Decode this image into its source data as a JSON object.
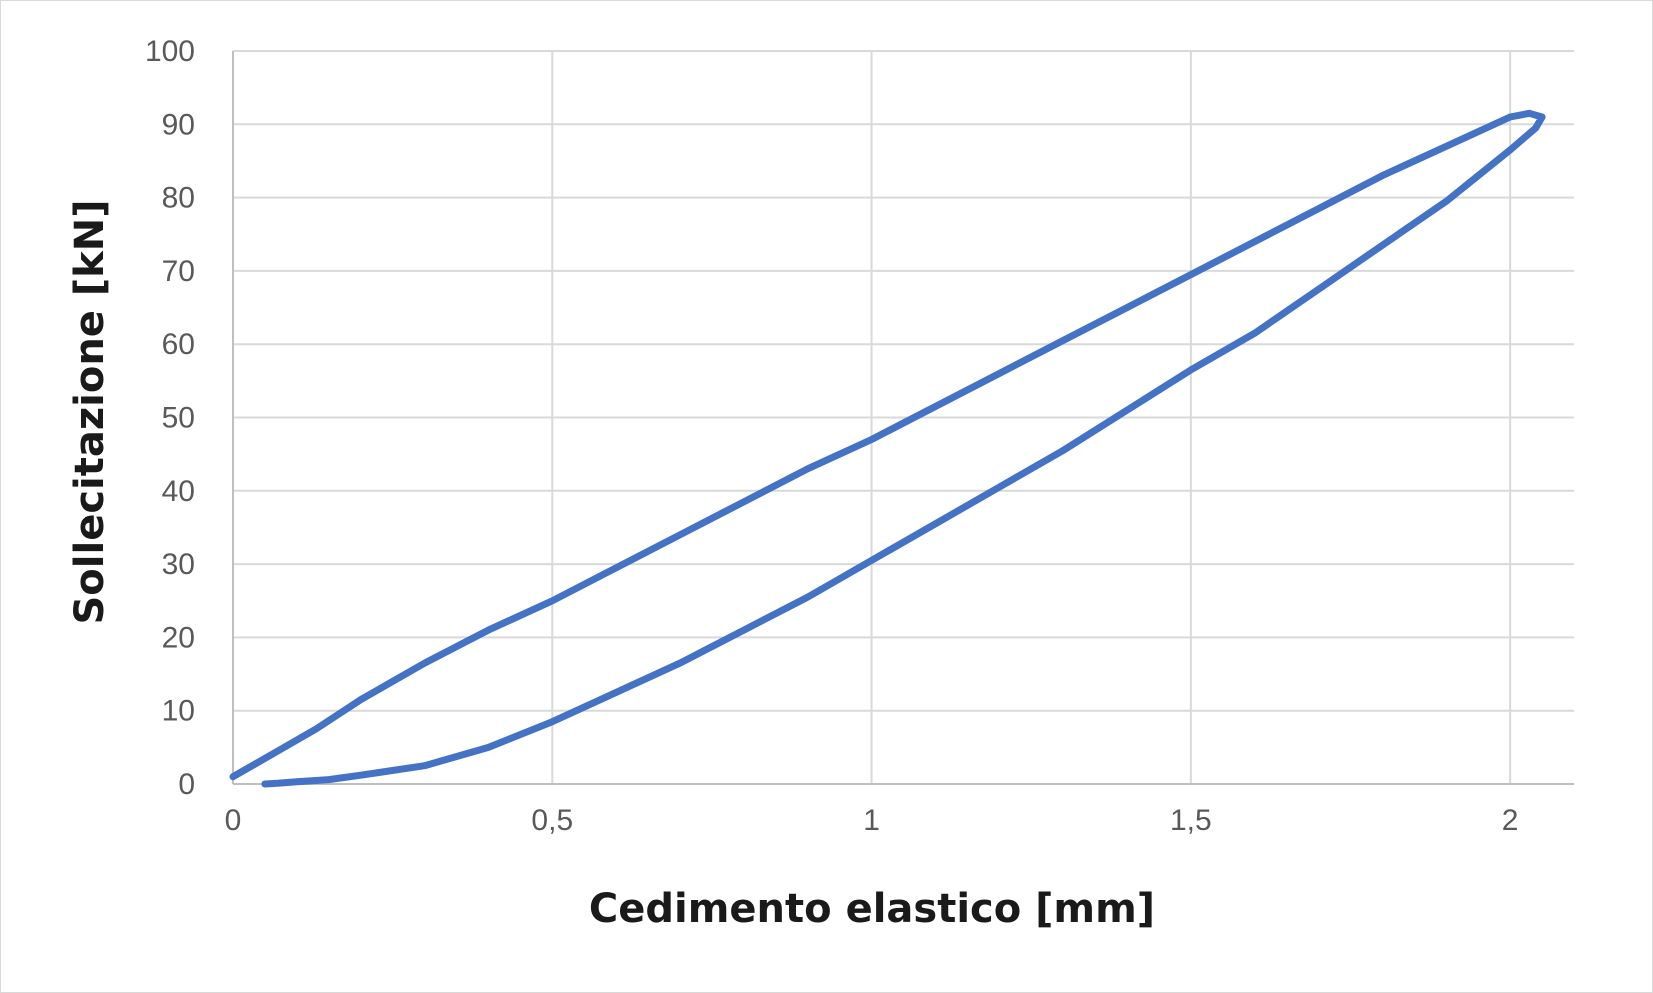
{
  "chart_data": {
    "type": "line",
    "title": "",
    "xlabel": "Cedimento elastico [mm]",
    "ylabel": "Sollecitazione [kN]",
    "xlim": [
      0,
      2.1
    ],
    "ylim": [
      0,
      100
    ],
    "x_ticks": [
      0,
      0.5,
      1,
      1.5,
      2
    ],
    "x_tick_labels": [
      "0",
      "0,5",
      "1",
      "1,5",
      "2"
    ],
    "y_ticks": [
      0,
      10,
      20,
      30,
      40,
      50,
      60,
      70,
      80,
      90,
      100
    ],
    "y_tick_labels": [
      "0",
      "10",
      "20",
      "30",
      "40",
      "50",
      "60",
      "70",
      "80",
      "90",
      "100"
    ],
    "grid": true,
    "legend": "none",
    "line_color": "#4472c4",
    "series": [
      {
        "x": [
          0.0,
          0.03,
          0.08,
          0.13,
          0.2,
          0.3,
          0.4,
          0.5,
          0.6,
          0.7,
          0.8,
          0.9,
          1.0,
          1.1,
          1.2,
          1.3,
          1.4,
          1.5,
          1.6,
          1.7,
          1.8,
          1.9,
          2.0,
          2.03,
          2.05,
          2.04,
          2.0,
          1.95,
          1.9,
          1.8,
          1.7,
          1.6,
          1.5,
          1.4,
          1.3,
          1.2,
          1.1,
          1.0,
          0.9,
          0.8,
          0.7,
          0.6,
          0.5,
          0.4,
          0.3,
          0.2,
          0.15,
          0.1,
          0.07,
          0.05
        ],
        "y": [
          1.0,
          2.5,
          5.0,
          7.5,
          11.5,
          16.5,
          21.0,
          25.0,
          29.5,
          34.0,
          38.5,
          43.0,
          47.0,
          51.5,
          56.0,
          60.5,
          65.0,
          69.5,
          74.0,
          78.5,
          83.0,
          87.0,
          91.0,
          91.5,
          91.0,
          89.5,
          86.5,
          83.0,
          79.5,
          73.5,
          67.5,
          61.5,
          56.5,
          51.0,
          45.5,
          40.5,
          35.5,
          30.5,
          25.5,
          21.0,
          16.5,
          12.5,
          8.5,
          5.0,
          2.5,
          1.2,
          0.6,
          0.3,
          0.1,
          0.0
        ]
      }
    ]
  }
}
